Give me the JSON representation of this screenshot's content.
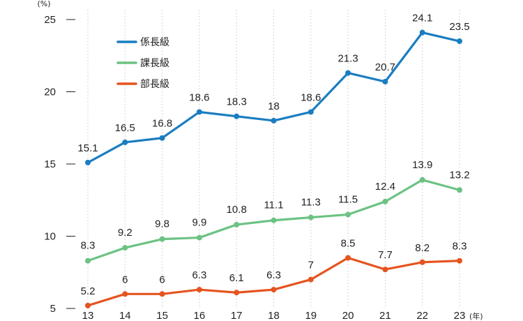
{
  "chart_data": {
    "type": "line",
    "x": [
      "13",
      "14",
      "15",
      "16",
      "17",
      "18",
      "19",
      "20",
      "21",
      "22",
      "23"
    ],
    "x_unit": "(年)",
    "y_unit": "(%)",
    "ylim": [
      5,
      25
    ],
    "yticks": [
      5,
      10,
      15,
      20,
      25
    ],
    "grid": "vertical dotted",
    "legend_position": "top-left",
    "series": [
      {
        "name": "係長級",
        "color": "#1a7dc1",
        "values": [
          15.1,
          16.5,
          16.8,
          18.6,
          18.3,
          18,
          18.6,
          21.3,
          20.7,
          24.1,
          23.5
        ],
        "labels": [
          "15.1",
          "16.5",
          "16.8",
          "18.6",
          "18.3",
          "18",
          "18.6",
          "21.3",
          "20.7",
          "24.1",
          "23.5"
        ]
      },
      {
        "name": "課長級",
        "color": "#6cc283",
        "values": [
          8.3,
          9.2,
          9.8,
          9.9,
          10.8,
          11.1,
          11.3,
          11.5,
          12.4,
          13.9,
          13.2
        ],
        "labels": [
          "8.3",
          "9.2",
          "9.8",
          "9.9",
          "10.8",
          "11.1",
          "11.3",
          "11.5",
          "12.4",
          "13.9",
          "13.2"
        ]
      },
      {
        "name": "部長級",
        "color": "#e5541f",
        "values": [
          5.2,
          6,
          6,
          6.3,
          6.1,
          6.3,
          7,
          8.5,
          7.7,
          8.2,
          8.3
        ],
        "labels": [
          "5.2",
          "6",
          "6",
          "6.3",
          "6.1",
          "6.3",
          "7",
          "8.5",
          "7.7",
          "8.2",
          "8.3"
        ]
      }
    ]
  }
}
